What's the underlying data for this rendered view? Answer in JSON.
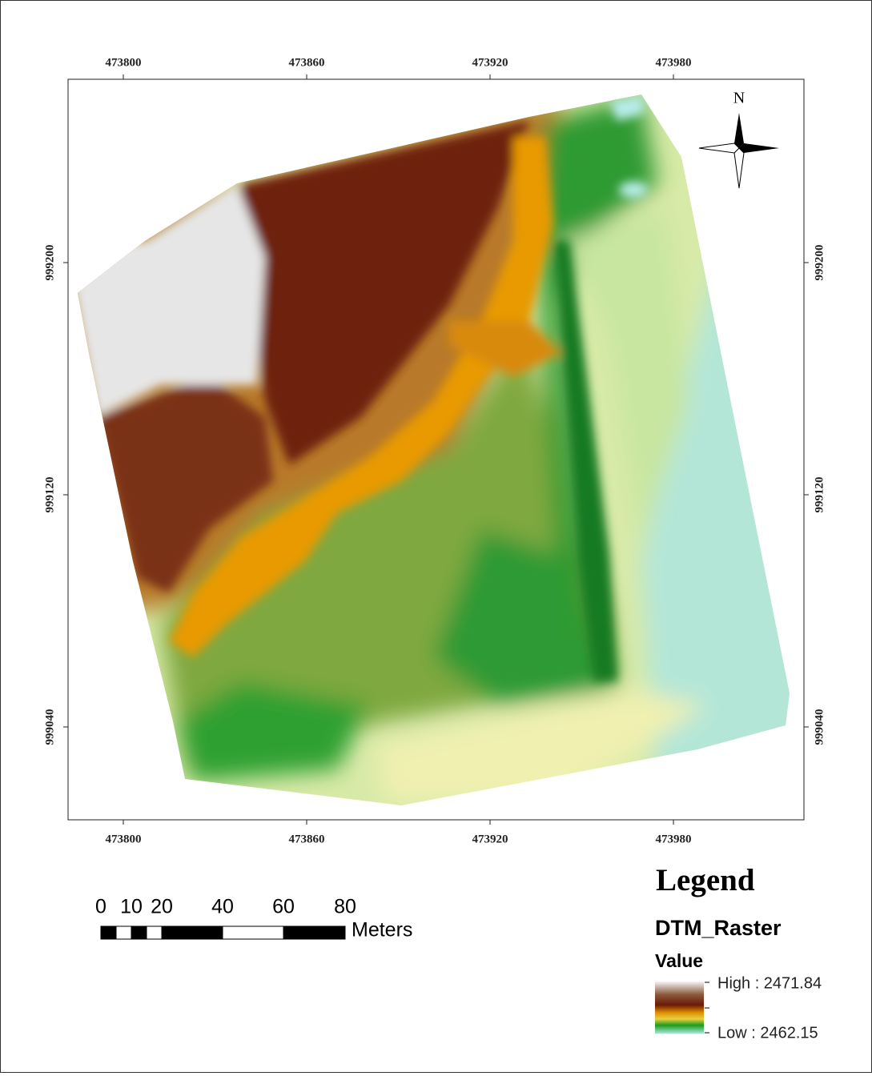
{
  "map": {
    "x_ticks": [
      473800,
      473860,
      473920,
      473980
    ],
    "y_ticks": [
      999200,
      999120,
      999040
    ],
    "north": "N",
    "scale_bar": {
      "labels": [
        0,
        10,
        20,
        40,
        60,
        80
      ],
      "unit": "Meters"
    },
    "legend": {
      "title": "Legend",
      "layer": "DTM_Raster",
      "field": "Value",
      "high": "High : 2471.84",
      "low": "Low : 2462.15"
    }
  }
}
